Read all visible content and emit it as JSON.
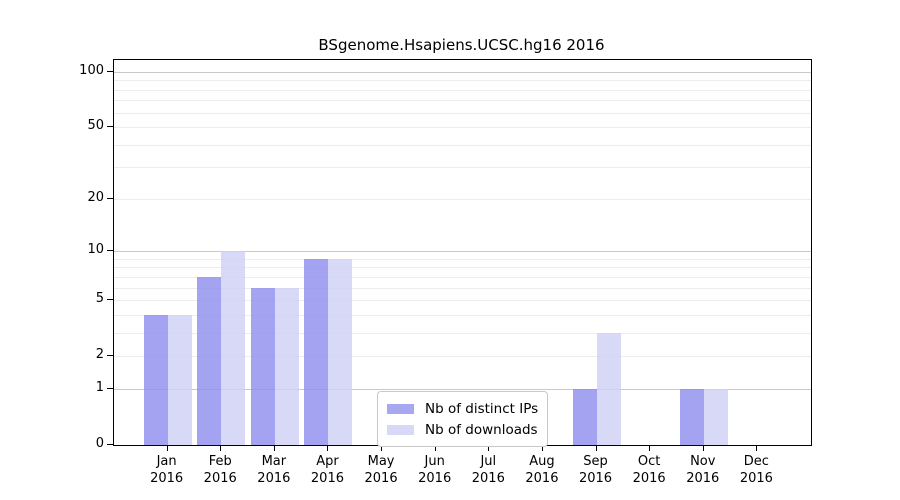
{
  "page": {
    "background": "#ffffff"
  },
  "chart_data": {
    "type": "bar",
    "title": "BSgenome.Hsapiens.UCSC.hg16 2016",
    "categories": [
      "Jan",
      "Feb",
      "Mar",
      "Apr",
      "May",
      "Jun",
      "Jul",
      "Aug",
      "Sep",
      "Oct",
      "Nov",
      "Dec"
    ],
    "year": "2016",
    "series": [
      {
        "name": "Nb of distinct IPs",
        "color": "#a8a8f2",
        "css_color": "rgba(143,143,238,0.82)",
        "values": [
          4,
          7,
          6,
          9,
          0,
          0,
          0,
          0,
          1,
          0,
          1,
          0
        ]
      },
      {
        "name": "Nb of downloads",
        "color": "#d8d8f7",
        "css_color": "rgba(208,208,245,0.82)",
        "values": [
          4,
          10,
          6,
          9,
          0,
          0,
          0,
          0,
          3,
          0,
          1,
          0
        ]
      }
    ],
    "xlabel": "",
    "ylabel": "",
    "yscale": "log1p",
    "ylim": [
      0,
      116
    ],
    "yticks": [
      0,
      1,
      2,
      5,
      10,
      20,
      50,
      100
    ],
    "grid": {
      "on": true,
      "major": [
        1,
        10,
        100
      ],
      "minor": [
        2,
        3,
        4,
        5,
        6,
        7,
        8,
        9,
        20,
        30,
        40,
        50,
        60,
        70,
        80,
        90
      ],
      "major_color": "#c9c9c9",
      "minor_color": "#ececec"
    },
    "legend": {
      "position": "inside-bottom-center",
      "entries": [
        "Nb of distinct IPs",
        "Nb of downloads"
      ]
    }
  }
}
